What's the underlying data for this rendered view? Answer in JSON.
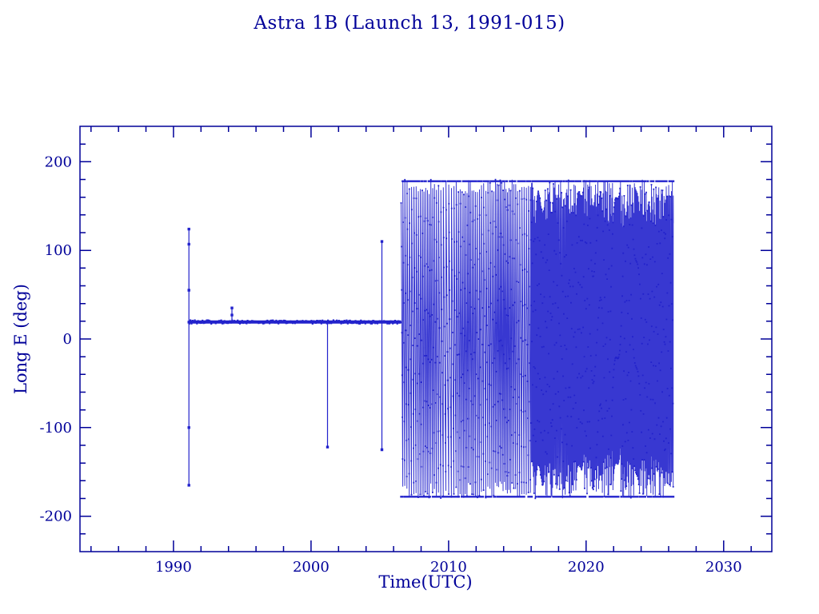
{
  "chart_data": {
    "type": "scatter",
    "title": "Astra 1B (Launch 13, 1991-015)",
    "xlabel": "Time(UTC)",
    "ylabel": "Long E (deg)",
    "xlim": [
      1983.2,
      2033.5
    ],
    "ylim": [
      -240,
      240
    ],
    "xticks": [
      1990,
      2000,
      2010,
      2020,
      2030
    ],
    "x_minor_step": 2,
    "yticks": [
      -200,
      -100,
      0,
      100,
      200
    ],
    "y_minor_step": 20,
    "axis_color": "#000099",
    "data_color": "#2222cc",
    "series": {
      "stationkeeping": {
        "x_start": 1991.15,
        "x_end": 2006.55,
        "longitude_deg": 19.2
      },
      "launch_spike": {
        "x": 1991.12,
        "points": [
          124,
          107,
          55,
          19,
          -100,
          -165
        ]
      },
      "excursions": [
        {
          "x": 1994.25,
          "points": [
            35,
            27
          ]
        },
        {
          "x": 2001.2,
          "points": [
            -122
          ]
        },
        {
          "x": 2005.15,
          "points": [
            110,
            -125
          ]
        }
      ],
      "drift": {
        "x_start": 2006.55,
        "x_end": 2026.35,
        "y_min": -180,
        "y_max": 180,
        "rate_early_deg_per_yr": 2600,
        "rate_late_deg_per_yr": 7600,
        "rate_change_year": 2016,
        "sample_step_yr": 0.006
      }
    }
  }
}
